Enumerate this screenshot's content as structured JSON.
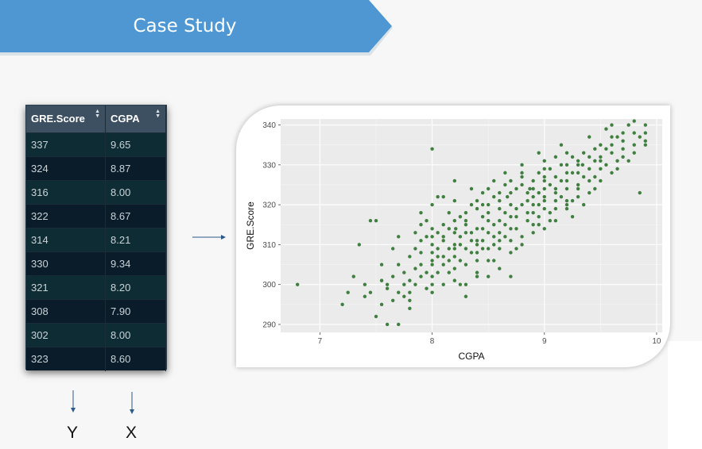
{
  "header": {
    "title": "Case Study"
  },
  "table": {
    "columns": [
      "GRE.Score",
      "CGPA"
    ],
    "rows": [
      [
        "337",
        "9.65"
      ],
      [
        "324",
        "8.87"
      ],
      [
        "316",
        "8.00"
      ],
      [
        "322",
        "8.67"
      ],
      [
        "314",
        "8.21"
      ],
      [
        "330",
        "9.34"
      ],
      [
        "321",
        "8.20"
      ],
      [
        "308",
        "7.90"
      ],
      [
        "302",
        "8.00"
      ],
      [
        "323",
        "8.60"
      ]
    ]
  },
  "labels": {
    "y": "Y",
    "x": "X"
  },
  "colors": {
    "banner": "#4e97d3",
    "point": "#3f7f3f",
    "panel": "#ebebeb",
    "table_header": "#3c5061"
  },
  "chart_data": {
    "type": "scatter",
    "xlabel": "CGPA",
    "ylabel": "GRE.Score",
    "xlim": [
      6.65,
      10.05
    ],
    "ylim": [
      288,
      341.5
    ],
    "xticks": [
      7,
      8,
      9,
      10
    ],
    "yticks": [
      290,
      300,
      310,
      320,
      330,
      340
    ],
    "grid": true,
    "points": [
      [
        6.8,
        300
      ],
      [
        7.2,
        295
      ],
      [
        7.25,
        298
      ],
      [
        7.3,
        302
      ],
      [
        7.35,
        310
      ],
      [
        7.4,
        297
      ],
      [
        7.45,
        316
      ],
      [
        7.5,
        316
      ],
      [
        7.5,
        292
      ],
      [
        7.55,
        295
      ],
      [
        7.6,
        299
      ],
      [
        7.6,
        290
      ],
      [
        7.65,
        309
      ],
      [
        7.7,
        290
      ],
      [
        7.7,
        298
      ],
      [
        7.75,
        297
      ],
      [
        7.8,
        296
      ],
      [
        7.85,
        300
      ],
      [
        7.9,
        308
      ],
      [
        7.9,
        315
      ],
      [
        7.95,
        299
      ],
      [
        8.0,
        302
      ],
      [
        8.0,
        300
      ],
      [
        8.0,
        334
      ],
      [
        8.0,
        310
      ],
      [
        8.05,
        322
      ],
      [
        8.1,
        305
      ],
      [
        8.1,
        312
      ],
      [
        8.15,
        306
      ],
      [
        8.2,
        321
      ],
      [
        8.2,
        310
      ],
      [
        8.21,
        314
      ],
      [
        8.25,
        300
      ],
      [
        8.3,
        309
      ],
      [
        8.3,
        316
      ],
      [
        8.35,
        308
      ],
      [
        8.4,
        311
      ],
      [
        8.4,
        302
      ],
      [
        8.45,
        314
      ],
      [
        8.5,
        306
      ],
      [
        8.5,
        318
      ],
      [
        8.55,
        312
      ],
      [
        8.6,
        323
      ],
      [
        8.6,
        316
      ],
      [
        8.67,
        322
      ],
      [
        8.7,
        320
      ],
      [
        8.7,
        308
      ],
      [
        8.75,
        319
      ],
      [
        8.8,
        325
      ],
      [
        8.87,
        324
      ],
      [
        8.9,
        320
      ],
      [
        8.95,
        323
      ],
      [
        9.0,
        322
      ],
      [
        9.0,
        327
      ],
      [
        9.05,
        318
      ],
      [
        9.1,
        324
      ],
      [
        9.15,
        326
      ],
      [
        9.2,
        320
      ],
      [
        9.2,
        328
      ],
      [
        9.25,
        321
      ],
      [
        9.3,
        330
      ],
      [
        9.34,
        330
      ],
      [
        9.4,
        326
      ],
      [
        9.45,
        331
      ],
      [
        9.5,
        335
      ],
      [
        9.55,
        334
      ],
      [
        9.6,
        337
      ],
      [
        9.65,
        337
      ],
      [
        9.7,
        336
      ],
      [
        9.75,
        340
      ],
      [
        9.8,
        335
      ],
      [
        9.85,
        323
      ],
      [
        9.9,
        340
      ],
      [
        8.8,
        312
      ],
      [
        8.6,
        309
      ],
      [
        8.4,
        306
      ],
      [
        8.2,
        304
      ],
      [
        8.1,
        300
      ],
      [
        9.1,
        316
      ],
      [
        8.9,
        315
      ],
      [
        8.7,
        311
      ],
      [
        8.5,
        313
      ],
      [
        8.3,
        305
      ],
      [
        8.15,
        309
      ],
      [
        7.95,
        303
      ],
      [
        7.8,
        307
      ],
      [
        7.7,
        312
      ],
      [
        9.2,
        324
      ],
      [
        9.0,
        319
      ],
      [
        8.85,
        318
      ],
      [
        8.65,
        315
      ],
      [
        8.45,
        317
      ],
      [
        8.25,
        312
      ],
      [
        8.05,
        307
      ],
      [
        7.85,
        309
      ],
      [
        9.35,
        327
      ],
      [
        9.15,
        322
      ],
      [
        8.95,
        317
      ],
      [
        8.75,
        314
      ],
      [
        8.55,
        310
      ],
      [
        8.35,
        311
      ],
      [
        8.0,
        314
      ],
      [
        7.75,
        303
      ],
      [
        9.5,
        331
      ],
      [
        9.3,
        325
      ],
      [
        9.1,
        321
      ],
      [
        8.9,
        322
      ],
      [
        8.7,
        317
      ],
      [
        8.5,
        309
      ],
      [
        8.3,
        318
      ],
      [
        8.1,
        315
      ],
      [
        7.9,
        311
      ],
      [
        7.6,
        300
      ],
      [
        9.6,
        333
      ],
      [
        9.4,
        329
      ],
      [
        9.2,
        326
      ],
      [
        9.0,
        324
      ],
      [
        8.8,
        320
      ],
      [
        8.6,
        319
      ],
      [
        8.4,
        314
      ],
      [
        8.2,
        313
      ],
      [
        8.0,
        306
      ],
      [
        7.8,
        301
      ],
      [
        9.7,
        338
      ],
      [
        9.5,
        332
      ],
      [
        9.3,
        328
      ],
      [
        9.1,
        327
      ],
      [
        8.9,
        326
      ],
      [
        8.7,
        323
      ],
      [
        8.5,
        320
      ],
      [
        8.3,
        315
      ],
      [
        8.1,
        311
      ],
      [
        7.9,
        305
      ],
      [
        9.8,
        338
      ],
      [
        9.6,
        335
      ],
      [
        9.4,
        332
      ],
      [
        9.2,
        330
      ],
      [
        9.0,
        329
      ],
      [
        8.8,
        327
      ],
      [
        8.6,
        321
      ],
      [
        8.4,
        319
      ],
      [
        8.2,
        316
      ],
      [
        8.0,
        312
      ],
      [
        7.7,
        305
      ],
      [
        9.9,
        336
      ],
      [
        9.7,
        334
      ],
      [
        9.5,
        329
      ],
      [
        9.3,
        331
      ],
      [
        9.05,
        329
      ],
      [
        8.85,
        323
      ],
      [
        8.65,
        325
      ],
      [
        8.45,
        320
      ],
      [
        8.25,
        317
      ],
      [
        8.05,
        313
      ],
      [
        7.85,
        313
      ],
      [
        9.45,
        327
      ],
      [
        9.25,
        332
      ],
      [
        9.05,
        325
      ],
      [
        8.85,
        321
      ],
      [
        8.65,
        318
      ],
      [
        8.45,
        309
      ],
      [
        8.25,
        306
      ],
      [
        8.05,
        303
      ],
      [
        7.65,
        296
      ],
      [
        9.55,
        330
      ],
      [
        9.35,
        333
      ],
      [
        9.15,
        330
      ],
      [
        8.95,
        328
      ],
      [
        8.75,
        324
      ],
      [
        8.55,
        322
      ],
      [
        8.35,
        320
      ],
      [
        8.15,
        318
      ],
      [
        7.95,
        316
      ],
      [
        7.55,
        301
      ],
      [
        9.65,
        331
      ],
      [
        9.45,
        334
      ],
      [
        9.25,
        328
      ],
      [
        8.95,
        320
      ],
      [
        8.75,
        317
      ],
      [
        8.55,
        315
      ],
      [
        8.35,
        313
      ],
      [
        8.15,
        314
      ],
      [
        7.95,
        312
      ],
      [
        7.45,
        298
      ],
      [
        8.8,
        310
      ],
      [
        8.6,
        313
      ],
      [
        8.4,
        308
      ],
      [
        8.2,
        307
      ],
      [
        8.0,
        305
      ],
      [
        7.8,
        298
      ],
      [
        9.0,
        314
      ],
      [
        9.1,
        319
      ],
      [
        8.9,
        313
      ],
      [
        8.7,
        314
      ],
      [
        8.5,
        316
      ],
      [
        8.3,
        313
      ],
      [
        8.1,
        307
      ],
      [
        7.9,
        302
      ],
      [
        9.3,
        322
      ],
      [
        9.2,
        319
      ],
      [
        8.6,
        304
      ],
      [
        8.4,
        303
      ],
      [
        8.2,
        301
      ],
      [
        8.0,
        298
      ],
      [
        7.8,
        294
      ],
      [
        7.4,
        300
      ],
      [
        8.7,
        302
      ],
      [
        8.3,
        297
      ],
      [
        9.6,
        340
      ],
      [
        9.55,
        339
      ],
      [
        9.85,
        337
      ],
      [
        9.75,
        331
      ],
      [
        9.65,
        329
      ],
      [
        9.9,
        338
      ],
      [
        9.8,
        341
      ],
      [
        9.0,
        331
      ],
      [
        9.1,
        332
      ],
      [
        9.2,
        333
      ],
      [
        9.4,
        337
      ],
      [
        8.65,
        328
      ],
      [
        8.8,
        330
      ],
      [
        8.45,
        323
      ],
      [
        8.2,
        326
      ],
      [
        8.1,
        322
      ],
      [
        8.0,
        320
      ],
      [
        7.9,
        318
      ],
      [
        8.35,
        324
      ],
      [
        8.55,
        326
      ],
      [
        8.95,
        333
      ],
      [
        9.15,
        335
      ],
      [
        8.25,
        310
      ],
      [
        8.55,
        306
      ],
      [
        8.75,
        309
      ],
      [
        8.95,
        315
      ],
      [
        9.05,
        316
      ],
      [
        9.25,
        317
      ],
      [
        9.45,
        324
      ],
      [
        9.35,
        320
      ],
      [
        8.85,
        316
      ],
      [
        8.65,
        312
      ],
      [
        8.45,
        311
      ],
      [
        8.15,
        303
      ],
      [
        7.85,
        304
      ],
      [
        7.75,
        300
      ],
      [
        7.65,
        302
      ],
      [
        7.55,
        305
      ],
      [
        8.05,
        309
      ],
      [
        8.3,
        300
      ],
      [
        8.5,
        302
      ],
      [
        8.9,
        318
      ],
      [
        9.0,
        321
      ],
      [
        9.1,
        323
      ],
      [
        9.2,
        321
      ],
      [
        9.3,
        324
      ],
      [
        9.4,
        323
      ],
      [
        9.5,
        326
      ],
      [
        9.6,
        328
      ],
      [
        9.7,
        332
      ],
      [
        9.8,
        333
      ],
      [
        9.9,
        335
      ],
      [
        8.6,
        311
      ],
      [
        8.4,
        310
      ],
      [
        8.2,
        309
      ],
      [
        8.0,
        308
      ],
      [
        8.7,
        326
      ],
      [
        8.8,
        328
      ],
      [
        8.9,
        324
      ],
      [
        9.0,
        326
      ],
      [
        8.5,
        324
      ],
      [
        8.4,
        321
      ]
    ]
  }
}
